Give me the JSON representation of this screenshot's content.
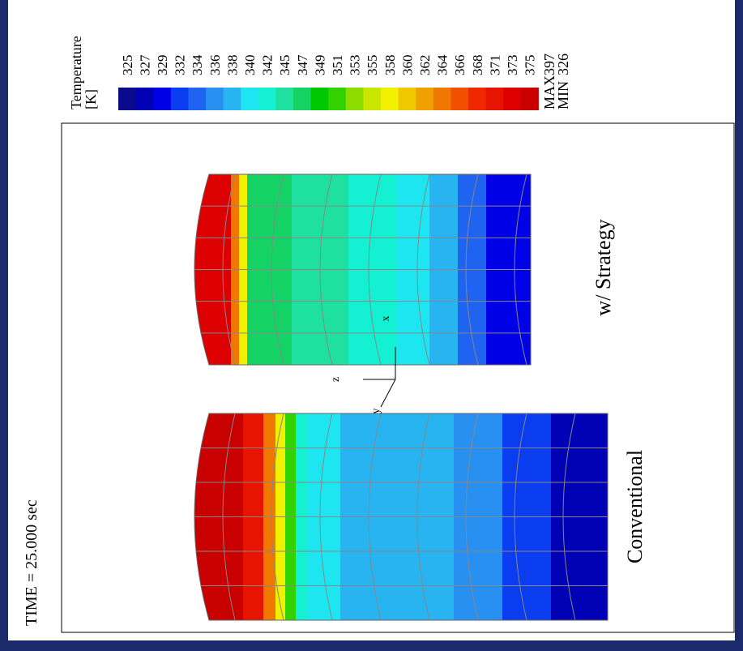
{
  "time_label": "TIME = 25.000 sec",
  "legend": {
    "title": "Temperature",
    "unit": "[K]",
    "levels": [
      325,
      327,
      329,
      332,
      334,
      336,
      338,
      340,
      342,
      345,
      347,
      349,
      351,
      353,
      355,
      358,
      360,
      362,
      364,
      366,
      368,
      371,
      373,
      375
    ],
    "colors": [
      "#0a0a8c",
      "#0000b4",
      "#0000e6",
      "#0a3cf0",
      "#1e64f0",
      "#2890f0",
      "#28b4f0",
      "#1ee6f0",
      "#14f0d2",
      "#1ee1a0",
      "#14d264",
      "#00c800",
      "#32d200",
      "#8cdc00",
      "#c8e600",
      "#f0f000",
      "#f0c800",
      "#f0a000",
      "#f07800",
      "#f05000",
      "#f02800",
      "#e61400",
      "#dc0000",
      "#c80000"
    ],
    "max_label": "MAX",
    "max": 397,
    "min_label": "MIN",
    "min": 326
  },
  "models": [
    {
      "label": "Conventional"
    },
    {
      "label": "w/ Strategy"
    }
  ],
  "triad": {
    "z": "z",
    "y": "y",
    "x": "x"
  }
}
